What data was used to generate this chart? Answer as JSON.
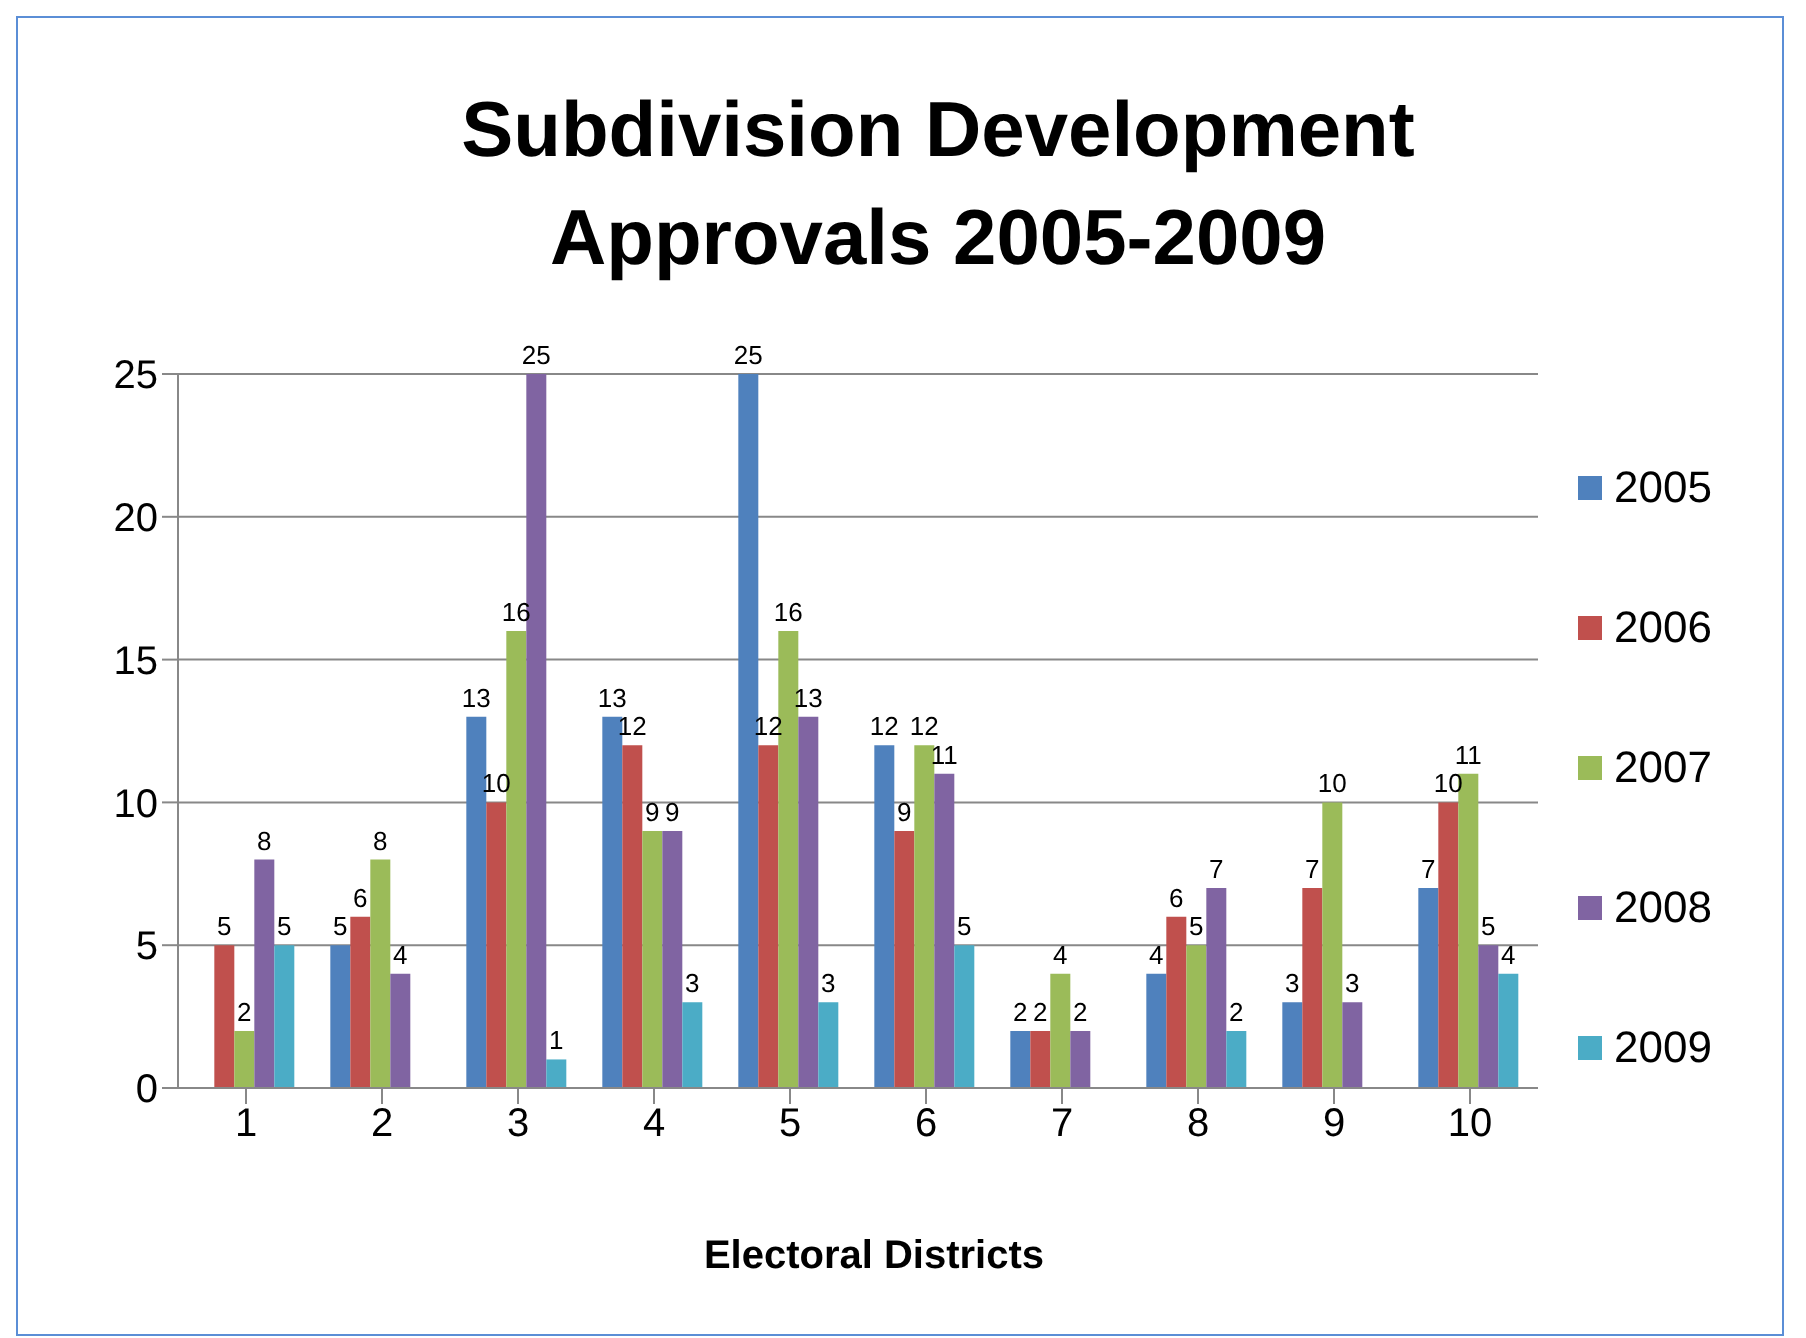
{
  "chart_data": {
    "type": "bar",
    "title": "Subdivision Development Approvals 2005-2009",
    "xlabel": "Electoral Districts",
    "categories": [
      "1",
      "2",
      "3",
      "4",
      "5",
      "6",
      "7",
      "8",
      "9",
      "10"
    ],
    "series": [
      {
        "name": "2005",
        "color": "#4f81bd",
        "values": [
          null,
          5,
          13,
          13,
          25,
          12,
          2,
          4,
          3,
          7
        ]
      },
      {
        "name": "2006",
        "color": "#c0504d",
        "values": [
          5,
          6,
          10,
          12,
          12,
          9,
          2,
          6,
          7,
          10
        ]
      },
      {
        "name": "2007",
        "color": "#9bbb59",
        "values": [
          2,
          8,
          16,
          9,
          16,
          12,
          4,
          5,
          10,
          11
        ]
      },
      {
        "name": "2008",
        "color": "#8064a2",
        "values": [
          8,
          4,
          25,
          9,
          13,
          11,
          2,
          7,
          3,
          5
        ]
      },
      {
        "name": "2009",
        "color": "#4bacc6",
        "values": [
          5,
          null,
          1,
          3,
          3,
          5,
          null,
          2,
          null,
          4
        ]
      }
    ],
    "ylim": [
      0,
      25
    ],
    "yticks": [
      0,
      5,
      10,
      15,
      20,
      25
    ],
    "grid": "y",
    "legend": "right",
    "data_labels": true
  }
}
